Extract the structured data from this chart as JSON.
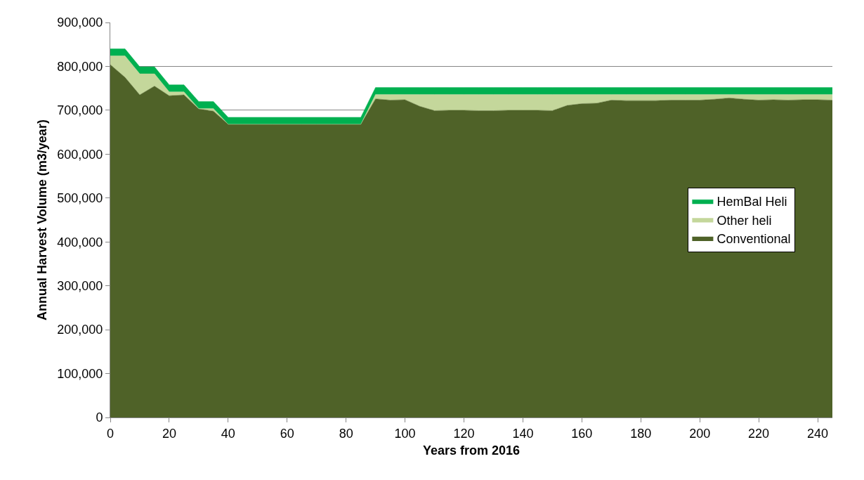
{
  "chart_data": {
    "type": "area",
    "stacked": true,
    "xlabel": "Years from 2016",
    "ylabel": "Annual Harvest Volume (m3/year)",
    "x": [
      0,
      5,
      10,
      15,
      20,
      25,
      30,
      35,
      40,
      45,
      50,
      55,
      60,
      65,
      70,
      75,
      80,
      85,
      90,
      95,
      100,
      105,
      110,
      115,
      120,
      125,
      130,
      135,
      140,
      145,
      150,
      155,
      160,
      165,
      170,
      175,
      180,
      185,
      190,
      195,
      200,
      205,
      210,
      215,
      220,
      225,
      230,
      235,
      240,
      245
    ],
    "series": [
      {
        "name": "Conventional",
        "color": "#4f6228",
        "values": [
          804000,
          775000,
          735000,
          755000,
          733000,
          735000,
          703000,
          698000,
          668000,
          668000,
          668000,
          668000,
          668000,
          668000,
          668000,
          668000,
          668000,
          668000,
          726000,
          723000,
          724000,
          709000,
          699000,
          700000,
          700000,
          699000,
          699000,
          700000,
          700000,
          700000,
          699000,
          711000,
          715000,
          716000,
          723000,
          722000,
          722000,
          722000,
          723000,
          723000,
          723000,
          725000,
          728000,
          725000,
          723000,
          724000,
          723000,
          724000,
          724000,
          723000
        ]
      },
      {
        "name": "Other heli",
        "color": "#c4d79b",
        "values": [
          20000,
          49000,
          48000,
          28000,
          9000,
          7000,
          1000,
          6000,
          0,
          0,
          0,
          0,
          0,
          0,
          0,
          0,
          0,
          0,
          10000,
          13000,
          12000,
          27000,
          37000,
          36000,
          36000,
          37000,
          37000,
          36000,
          36000,
          36000,
          37000,
          25000,
          21000,
          20000,
          13000,
          14000,
          14000,
          14000,
          13000,
          13000,
          13000,
          11000,
          8000,
          11000,
          13000,
          12000,
          13000,
          12000,
          12000,
          13000
        ]
      },
      {
        "name": "HemBal Heli",
        "color": "#00b050",
        "values": [
          16000,
          16000,
          16000,
          16000,
          16000,
          16000,
          16000,
          16000,
          16000,
          16000,
          16000,
          16000,
          16000,
          16000,
          16000,
          16000,
          16000,
          16000,
          16000,
          16000,
          16000,
          16000,
          16000,
          16000,
          16000,
          16000,
          16000,
          16000,
          16000,
          16000,
          16000,
          16000,
          16000,
          16000,
          16000,
          16000,
          16000,
          16000,
          16000,
          16000,
          16000,
          16000,
          16000,
          16000,
          16000,
          16000,
          16000,
          16000,
          16000,
          16000
        ]
      }
    ],
    "xlim": [
      0,
      245
    ],
    "xticks": [
      0,
      20,
      40,
      60,
      80,
      100,
      120,
      140,
      160,
      180,
      200,
      220,
      240
    ],
    "ylim": [
      0,
      900000
    ],
    "yticks": [
      {
        "value": 0,
        "label": "0"
      },
      {
        "value": 100000,
        "label": "100,000"
      },
      {
        "value": 200000,
        "label": "200,000"
      },
      {
        "value": 300000,
        "label": "300,000"
      },
      {
        "value": 400000,
        "label": "400,000"
      },
      {
        "value": 500000,
        "label": "500,000"
      },
      {
        "value": 600000,
        "label": "600,000"
      },
      {
        "value": 700000,
        "label": "700,000"
      },
      {
        "value": 800000,
        "label": "800,000"
      },
      {
        "value": 900000,
        "label": "900,000"
      }
    ],
    "grid": "y",
    "legend": "right",
    "marker": "none"
  }
}
